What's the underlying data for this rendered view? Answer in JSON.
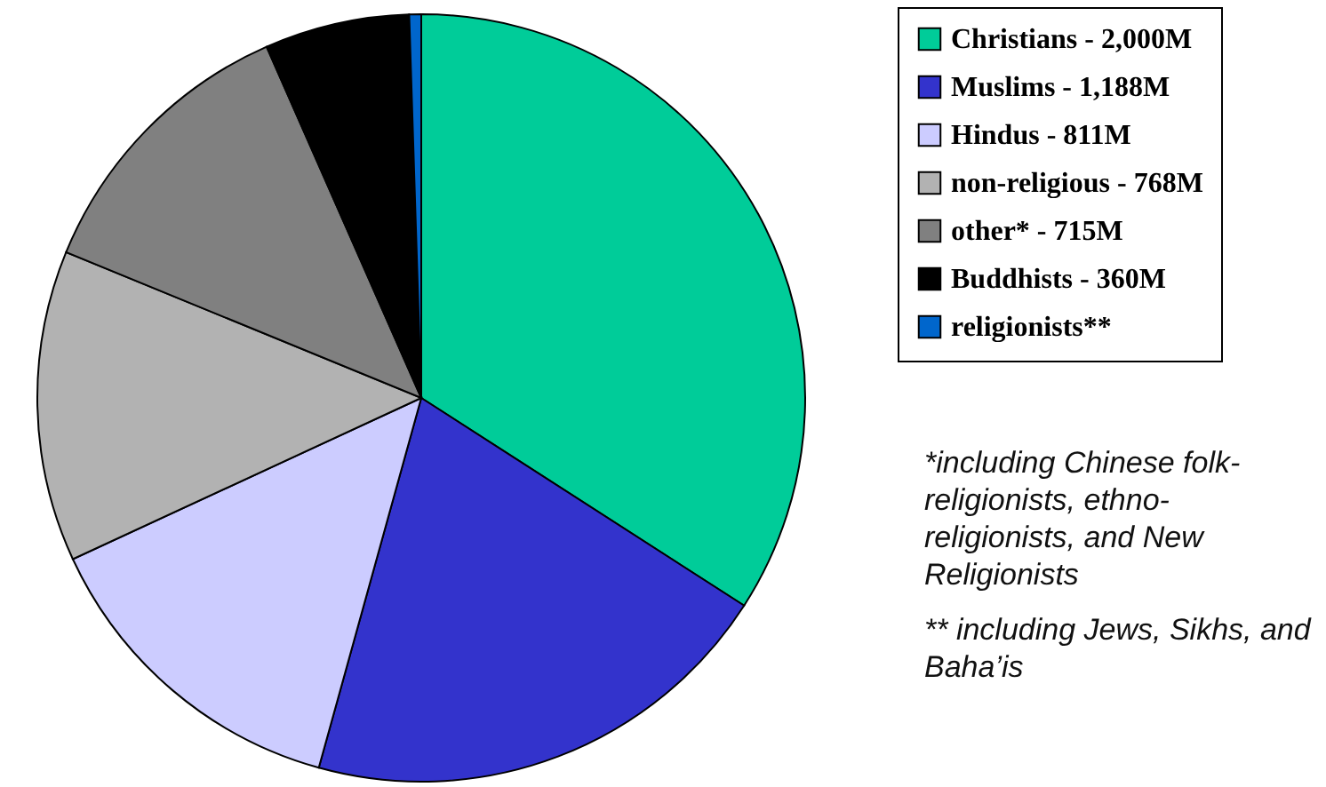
{
  "chart_data": {
    "type": "pie",
    "categories": [
      "Christians - 2,000M",
      "Muslims - 1,188M",
      "Hindus - 811M",
      "non-religious - 768M",
      "other* - 715M",
      "Buddhists - 360M",
      "religionists**"
    ],
    "values": [
      34.1,
      20.2,
      13.8,
      13.1,
      12.2,
      6.1,
      0.5
    ],
    "colors": [
      "#00cc99",
      "#3333cc",
      "#ccccff",
      "#b2b2b2",
      "#808080",
      "#000000",
      "#0066cc"
    ],
    "legend": "top right",
    "annotations": [
      "*including Chinese folk-religionists, ethno-religionists, and New Religionists",
      "** including Jews, Sikhs, and Baha’is"
    ]
  }
}
